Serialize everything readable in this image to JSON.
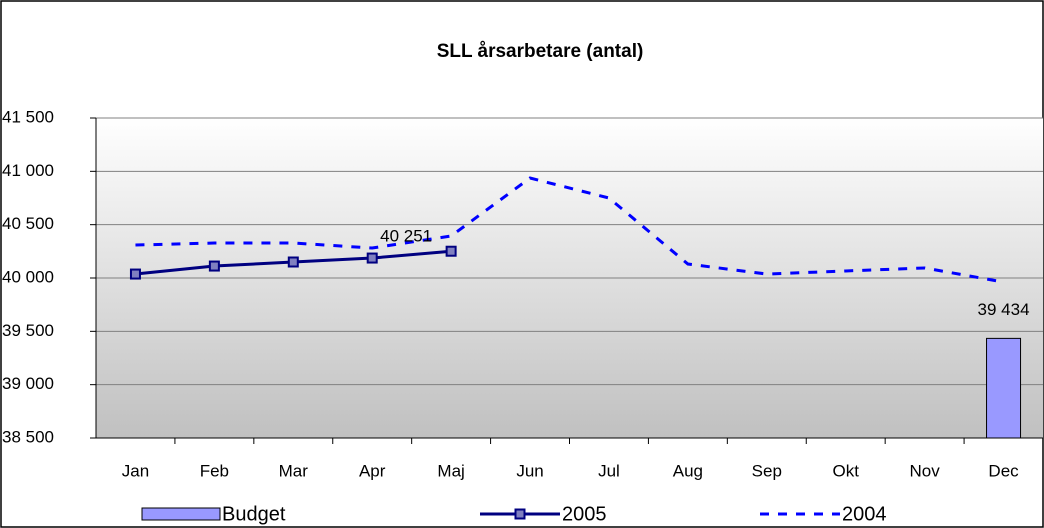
{
  "chart_data": {
    "type": "line",
    "title": "SLL årsarbetare (antal)",
    "categories": [
      "Jan",
      "Feb",
      "Mar",
      "Apr",
      "Maj",
      "Jun",
      "Jul",
      "Aug",
      "Sep",
      "Okt",
      "Nov",
      "Dec"
    ],
    "series": [
      {
        "name": "Budget",
        "type": "bar",
        "color": "#9999ff",
        "values": [
          null,
          null,
          null,
          null,
          null,
          null,
          null,
          null,
          null,
          null,
          null,
          39434
        ],
        "value_labels": [
          null,
          null,
          null,
          null,
          null,
          null,
          null,
          null,
          null,
          null,
          null,
          "39 434"
        ]
      },
      {
        "name": "2005",
        "type": "line",
        "color": "#000080",
        "marker": "square",
        "values": [
          40037,
          40112,
          40150,
          40187,
          40251,
          null,
          null,
          null,
          null,
          null,
          null,
          null
        ],
        "value_labels": [
          null,
          null,
          null,
          null,
          "40 251",
          null,
          null,
          null,
          null,
          null,
          null,
          null
        ]
      },
      {
        "name": "2004",
        "type": "line",
        "color": "#0000ff",
        "dashed": true,
        "values": [
          40309,
          40328,
          40328,
          40281,
          40394,
          40937,
          40750,
          40131,
          40037,
          40066,
          40094,
          39962
        ]
      }
    ],
    "ylim": [
      38500,
      41500
    ],
    "yticks": [
      {
        "value": 38500,
        "label": "38 500"
      },
      {
        "value": 39000,
        "label": "39 000"
      },
      {
        "value": 39500,
        "label": "39 500"
      },
      {
        "value": 40000,
        "label": "40 000"
      },
      {
        "value": 40500,
        "label": "40 500"
      },
      {
        "value": 41000,
        "label": "41 000"
      },
      {
        "value": 41500,
        "label": "41 500"
      }
    ],
    "grid": true,
    "legend": "bottom"
  }
}
